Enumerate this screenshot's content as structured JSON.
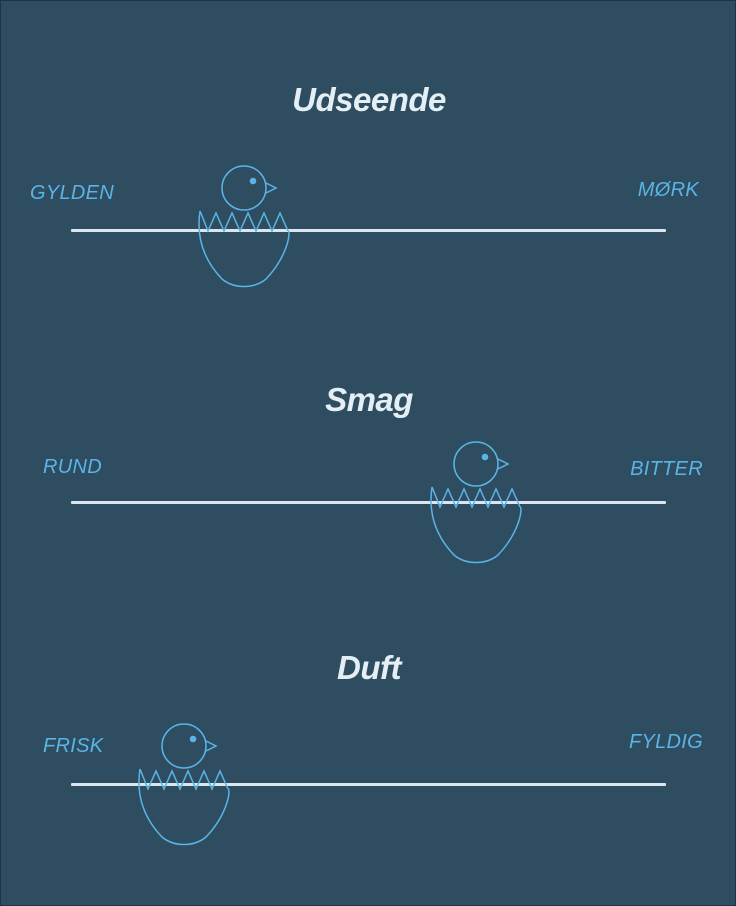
{
  "colors": {
    "background": "#2f4d61",
    "accent": "#5ab4e6",
    "track": "#dbe6ee",
    "title": "#e4eef5"
  },
  "sliders": [
    {
      "title": "Udseende",
      "left_label": "GYLDEN",
      "right_label": "MØRK",
      "value": 0.29,
      "handle_icon": "hatching-chick-icon"
    },
    {
      "title": "Smag",
      "left_label": "RUND",
      "right_label": "BITTER",
      "value": 0.68,
      "handle_icon": "hatching-chick-icon"
    },
    {
      "title": "Duft",
      "left_label": "FRISK",
      "right_label": "FYLDIG",
      "value": 0.19,
      "handle_icon": "hatching-chick-icon"
    }
  ]
}
